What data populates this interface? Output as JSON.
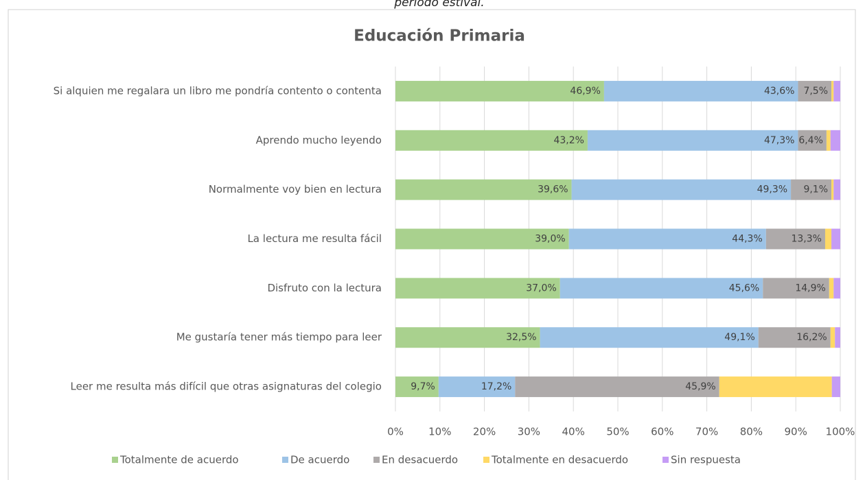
{
  "caption": "periodo estival.",
  "chart_data": {
    "type": "stacked_barh",
    "title": "Educación Primaria",
    "categories": [
      "Si alquien me regalara un libro me pondría contento o contenta",
      "Aprendo mucho leyendo",
      "Normalmente voy bien en lectura",
      "La lectura me resulta fácil",
      "Disfruto con la lectura",
      "Me gustaría tener más tiempo para leer",
      "Leer me resulta más difícil que otras asignaturas del colegio"
    ],
    "series": [
      {
        "name": "Totalmente de acuerdo",
        "color": "#a9d18e",
        "values": [
          46.9,
          43.2,
          39.6,
          39.0,
          37.0,
          32.5,
          9.7
        ],
        "value_labels": [
          "46,9%",
          "43,2%",
          "39,6%",
          "39,0%",
          "37,0%",
          "32,5%",
          "9,7%"
        ]
      },
      {
        "name": "De acuerdo",
        "color": "#9dc3e6",
        "values": [
          43.6,
          47.3,
          49.3,
          44.3,
          45.6,
          49.1,
          17.2
        ],
        "value_labels": [
          "43,6%",
          "47,3%",
          "49,3%",
          "44,3%",
          "45,6%",
          "49,1%",
          "17,2%"
        ]
      },
      {
        "name": "En desacuerdo",
        "color": "#aeaaaa",
        "values": [
          7.5,
          6.4,
          9.1,
          13.3,
          14.9,
          16.2,
          45.9
        ],
        "value_labels": [
          "7,5%",
          "6,4%",
          "9,1%",
          "13,3%",
          "14,9%",
          "16,2%",
          "45,9%"
        ]
      },
      {
        "name": "Totalmente en desacuerdo",
        "color": "#ffd966",
        "values": [
          0.5,
          0.9,
          0.5,
          1.4,
          1.0,
          1.0,
          25.3
        ]
      },
      {
        "name": "Sin respuesta",
        "color": "#c59cf5",
        "values": [
          1.5,
          2.2,
          1.5,
          2.0,
          1.5,
          1.2,
          1.9
        ]
      }
    ],
    "xlim": [
      0,
      100
    ],
    "xticks": [
      {
        "value": 0,
        "label": "0%"
      },
      {
        "value": 10,
        "label": "10%"
      },
      {
        "value": 20,
        "label": "20%"
      },
      {
        "value": 30,
        "label": "30%"
      },
      {
        "value": 40,
        "label": "40%"
      },
      {
        "value": 50,
        "label": "50%"
      },
      {
        "value": 60,
        "label": "60%"
      },
      {
        "value": 70,
        "label": "70%"
      },
      {
        "value": 80,
        "label": "80%"
      },
      {
        "value": 90,
        "label": "90%"
      },
      {
        "value": 100,
        "label": "100%"
      }
    ],
    "grid": true,
    "legend": "bottom"
  }
}
